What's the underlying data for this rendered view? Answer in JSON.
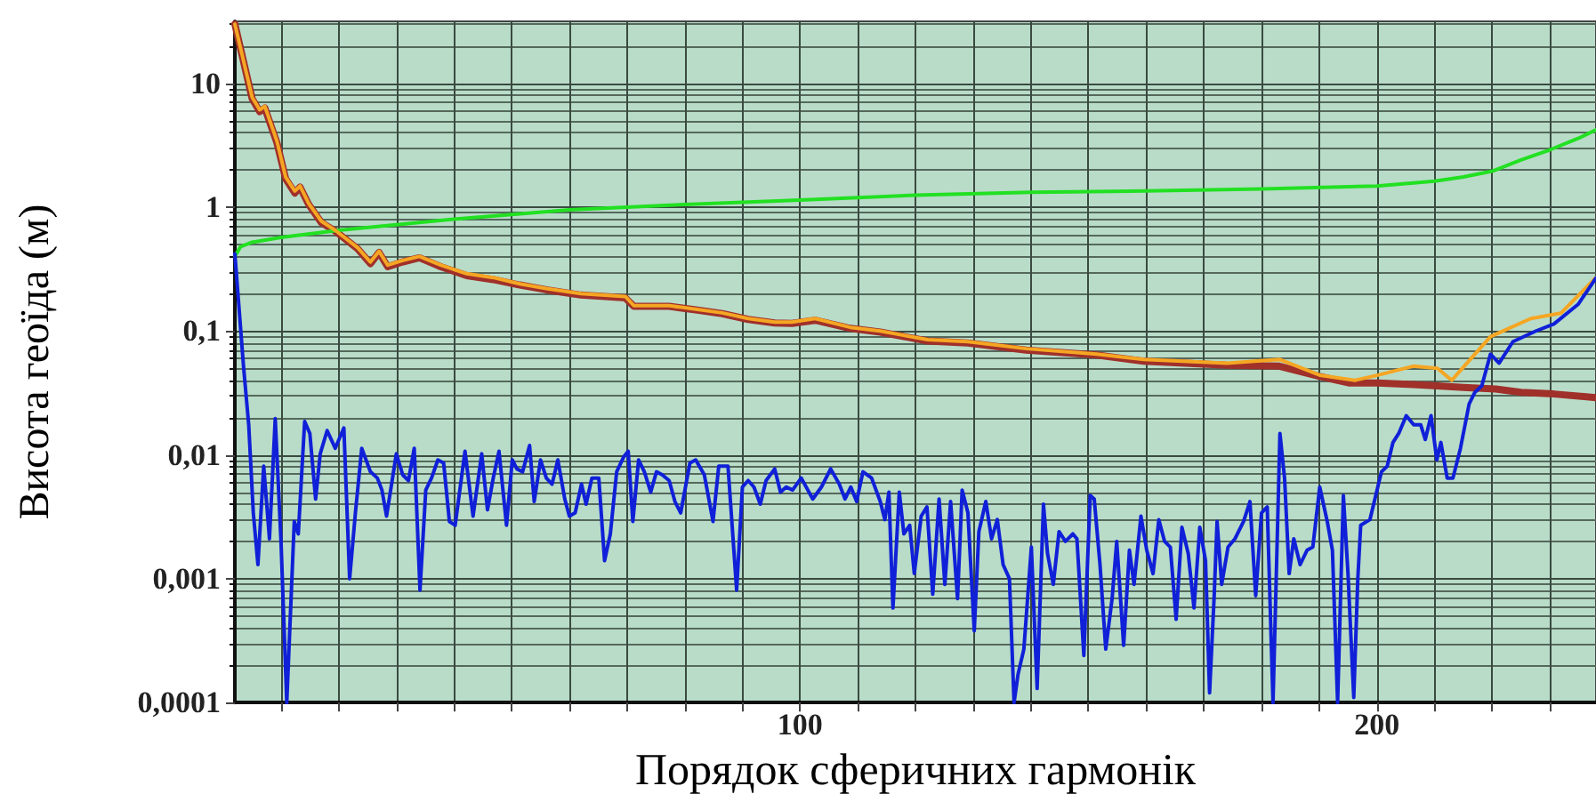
{
  "chart_data": {
    "type": "line",
    "xlabel": "Порядок сферичних гармонік",
    "ylabel": "Висота геоїда (м)",
    "log": "y",
    "grid": true,
    "marker": "none",
    "xlim": [
      2,
      238
    ],
    "xticks": [
      {
        "value": 10,
        "label": null
      },
      {
        "value": 20,
        "label": null
      },
      {
        "value": 30,
        "label": null
      },
      {
        "value": 40,
        "label": null
      },
      {
        "value": 50,
        "label": null
      },
      {
        "value": 60,
        "label": null
      },
      {
        "value": 70,
        "label": null
      },
      {
        "value": 80,
        "label": null
      },
      {
        "value": 90,
        "label": null
      },
      100,
      {
        "value": 110,
        "label": null
      },
      {
        "value": 120,
        "label": null
      },
      {
        "value": 130,
        "label": null
      },
      {
        "value": 140,
        "label": null
      },
      {
        "value": 150,
        "label": null
      },
      {
        "value": 160,
        "label": null
      },
      {
        "value": 170,
        "label": null
      },
      {
        "value": 180,
        "label": null
      },
      {
        "value": 190,
        "label": null
      },
      200,
      {
        "value": 210,
        "label": null
      },
      {
        "value": 220,
        "label": null
      },
      {
        "value": 230,
        "label": null
      }
    ],
    "ylim": [
      0.0001,
      31.6
    ],
    "yticks": [
      {
        "value": 0.0001,
        "label": "0,0001"
      },
      {
        "value": 0.001,
        "label": "0,001"
      },
      {
        "value": 0.01,
        "label": "0,01"
      },
      {
        "value": 0.1,
        "label": "0,1"
      },
      1,
      10
    ],
    "series": [
      {
        "color": "#22e022",
        "x": [
          2,
          3,
          5,
          10,
          20,
          40,
          60,
          80,
          100,
          120,
          140,
          160,
          180,
          200,
          210,
          215,
          220,
          225,
          230,
          235,
          238
        ],
        "values": [
          0.4,
          0.48,
          0.52,
          0.57,
          0.65,
          0.8,
          0.95,
          1.05,
          1.14,
          1.25,
          1.32,
          1.35,
          1.4,
          1.48,
          1.62,
          1.75,
          1.95,
          2.4,
          2.9,
          3.6,
          4.2
        ]
      },
      {
        "color": "#a0302a",
        "x": [
          2,
          5,
          6.3,
          7.2,
          9.3,
          10.8,
          12.4,
          13.3,
          14.8,
          17,
          19.4,
          23.3,
          25.5,
          27,
          28.5,
          31,
          34,
          37.7,
          42.2,
          46.8,
          51.4,
          56,
          62,
          69.7,
          71.2,
          77.3,
          81.9,
          86.5,
          91,
          95.6,
          98.6,
          102.6,
          108.7,
          113.9,
          122.1,
          129.1,
          139.2,
          151.4,
          159.6,
          174,
          183.1,
          190.1,
          195.3,
          200.2,
          206.3,
          210.5,
          215,
          220.6,
          225,
          230.7,
          238
        ],
        "values": [
          30,
          7.5,
          5.9,
          6.3,
          3.3,
          1.7,
          1.3,
          1.45,
          1.05,
          0.75,
          0.64,
          0.46,
          0.35,
          0.43,
          0.33,
          0.36,
          0.39,
          0.33,
          0.28,
          0.26,
          0.235,
          0.215,
          0.195,
          0.185,
          0.158,
          0.158,
          0.148,
          0.138,
          0.124,
          0.116,
          0.115,
          0.122,
          0.105,
          0.098,
          0.083,
          0.08,
          0.07,
          0.064,
          0.057,
          0.053,
          0.052,
          0.043,
          0.038,
          0.038,
          0.037,
          0.036,
          0.035,
          0.034,
          0.032,
          0.031,
          0.029
        ]
      },
      {
        "color": "#f5a623",
        "x": [
          2,
          5,
          6.3,
          7.2,
          9.3,
          10.8,
          12.4,
          13.3,
          14.8,
          17,
          19.4,
          23.3,
          25.5,
          27,
          28.5,
          31,
          34,
          37.7,
          42.2,
          46.8,
          51.4,
          56,
          62,
          69.7,
          71.2,
          77.3,
          81.9,
          86.5,
          91,
          95.6,
          98.6,
          102.6,
          108.7,
          113.9,
          122.1,
          129.1,
          139.2,
          151.4,
          159.6,
          174,
          183.1,
          190.1,
          196.2,
          200.2,
          206.3,
          210.5,
          213,
          219.7,
          226.7,
          231.9,
          238
        ],
        "values": [
          30,
          7.7,
          6.1,
          6.5,
          3.4,
          1.75,
          1.35,
          1.48,
          1.07,
          0.77,
          0.65,
          0.47,
          0.36,
          0.44,
          0.34,
          0.37,
          0.4,
          0.34,
          0.29,
          0.27,
          0.24,
          0.22,
          0.2,
          0.19,
          0.16,
          0.16,
          0.15,
          0.14,
          0.126,
          0.118,
          0.118,
          0.126,
          0.107,
          0.1,
          0.085,
          0.082,
          0.072,
          0.065,
          0.059,
          0.055,
          0.059,
          0.044,
          0.04,
          0.044,
          0.052,
          0.05,
          0.04,
          0.09,
          0.126,
          0.139,
          0.27
        ]
      },
      {
        "color": "#1020d8",
        "x": [
          2,
          3.5,
          4.4,
          5.2,
          6,
          7,
          8,
          9,
          10,
          11,
          12.3,
          13,
          14.1,
          15,
          16,
          16.8,
          18,
          19.4,
          20.9,
          21.9,
          22.9,
          24,
          25.5,
          26.7,
          27.5,
          28.3,
          30,
          31.1,
          32.1,
          33.1,
          34.1,
          35.1,
          36.1,
          37.2,
          38.2,
          39.2,
          40.2,
          41.9,
          43.3,
          44.8,
          45.8,
          46.8,
          47.8,
          49.1,
          50.1,
          50.9,
          51.9,
          53.1,
          53.9,
          55,
          56,
          57,
          58,
          59.2,
          60,
          61,
          62.1,
          62.9,
          63.9,
          65.1,
          66.1,
          67.1,
          68.2,
          69.4,
          70.2,
          71,
          72,
          73,
          74.1,
          75.1,
          76.1,
          77.3,
          78.3,
          79.3,
          80.9,
          81.9,
          83.4,
          84.9,
          85.9,
          87.5,
          89,
          90,
          91,
          92,
          93.1,
          94.1,
          95.6,
          96.6,
          97.6,
          98.7,
          100.2,
          102.2,
          103.7,
          105.3,
          106.8,
          107.8,
          108.8,
          109.8,
          110.9,
          112.4,
          113.9,
          114.7,
          115.4,
          116.1,
          117.2,
          118,
          119,
          119.8,
          121,
          122,
          123,
          124.1,
          125.1,
          126.1,
          127.3,
          128.1,
          129.1,
          130.2,
          131,
          132.2,
          133.2,
          134.2,
          135.2,
          136.3,
          137.1,
          137.8,
          138.8,
          140.1,
          141.1,
          142.2,
          142.9,
          143.9,
          144.9,
          146,
          147.3,
          148,
          149.2,
          150.3,
          151,
          152,
          153,
          154.1,
          154.9,
          156.1,
          157.1,
          157.9,
          159.1,
          160.1,
          161.2,
          162.2,
          163.2,
          164.2,
          165.2,
          166.2,
          167.3,
          168.3,
          169.3,
          170.3,
          171,
          171.8,
          172.3,
          173.1,
          174.2,
          175.4,
          176.9,
          178,
          179,
          180,
          181,
          182,
          183.2,
          184,
          184.8,
          185.6,
          186.7,
          187.9,
          188.9,
          190.1,
          191.4,
          192.3,
          193.2,
          194.2,
          195,
          196,
          196.7,
          197.2,
          198.8,
          200.8,
          201.8,
          202.8,
          203.8,
          205.1,
          206.4,
          207.6,
          208.4,
          209.4,
          210.4,
          211.1,
          212.2,
          213.2,
          214.5,
          216,
          217,
          218.2,
          219.7,
          221.2,
          223.6,
          227.6,
          230.7,
          234.9,
          238
        ],
        "values": [
          0.42,
          0.052,
          0.0175,
          0.0034,
          0.0013,
          0.0081,
          0.0021,
          0.0196,
          0.002,
          0.0001,
          0.0029,
          0.0023,
          0.0186,
          0.0149,
          0.0044,
          0.0102,
          0.0157,
          0.0113,
          0.0165,
          0.001,
          0.0034,
          0.0113,
          0.0073,
          0.0065,
          0.0052,
          0.0032,
          0.0102,
          0.0069,
          0.0062,
          0.0113,
          0.00081,
          0.0052,
          0.0065,
          0.0091,
          0.0086,
          0.0029,
          0.0027,
          0.0107,
          0.0032,
          0.0102,
          0.0036,
          0.0065,
          0.0107,
          0.0027,
          0.0091,
          0.0077,
          0.0073,
          0.0119,
          0.0042,
          0.0091,
          0.0065,
          0.0058,
          0.0091,
          0.0044,
          0.0032,
          0.0034,
          0.0058,
          0.004,
          0.0065,
          0.0065,
          0.0014,
          0.0023,
          0.0073,
          0.0096,
          0.0107,
          0.0029,
          0.0091,
          0.0073,
          0.005,
          0.0073,
          0.0069,
          0.0062,
          0.0042,
          0.0034,
          0.0086,
          0.0091,
          0.0069,
          0.0029,
          0.0081,
          0.0081,
          0.00081,
          0.0055,
          0.0062,
          0.0055,
          0.004,
          0.0062,
          0.0077,
          0.005,
          0.0055,
          0.0052,
          0.0065,
          0.0044,
          0.0055,
          0.0077,
          0.0058,
          0.0044,
          0.0055,
          0.0042,
          0.0073,
          0.0065,
          0.0042,
          0.003,
          0.005,
          0.00058,
          0.005,
          0.0023,
          0.0027,
          0.0011,
          0.0032,
          0.0038,
          0.00075,
          0.0044,
          0.0009,
          0.0042,
          0.00069,
          0.0052,
          0.0034,
          0.00038,
          0.0024,
          0.0042,
          0.0021,
          0.003,
          0.0013,
          0.001,
          0.0001,
          0.00017,
          0.00027,
          0.0018,
          0.00013,
          0.004,
          0.0016,
          0.0009,
          0.0024,
          0.002,
          0.0023,
          0.0021,
          0.00024,
          0.0047,
          0.0044,
          0.0013,
          0.00027,
          0.00069,
          0.002,
          0.00029,
          0.0017,
          0.0009,
          0.0032,
          0.0017,
          0.0011,
          0.003,
          0.002,
          0.0018,
          0.00047,
          0.0026,
          0.0016,
          0.00058,
          0.0026,
          0.0014,
          0.00012,
          0.00073,
          0.0029,
          0.0009,
          0.0018,
          0.0021,
          0.0029,
          0.0042,
          0.00073,
          0.0034,
          0.0038,
          0.0001,
          0.0149,
          0.0065,
          0.0011,
          0.0021,
          0.0013,
          0.0017,
          0.0018,
          0.0055,
          0.0029,
          0.0017,
          0.0001,
          0.0047,
          0.0011,
          0.00011,
          0.001,
          0.0027,
          0.003,
          0.0073,
          0.0081,
          0.0126,
          0.0149,
          0.0207,
          0.0175,
          0.0175,
          0.0133,
          0.0207,
          0.0091,
          0.0126,
          0.0065,
          0.0065,
          0.0113,
          0.0257,
          0.032,
          0.036,
          0.065,
          0.055,
          0.082,
          0.1,
          0.114,
          0.164,
          0.268
        ]
      }
    ]
  }
}
